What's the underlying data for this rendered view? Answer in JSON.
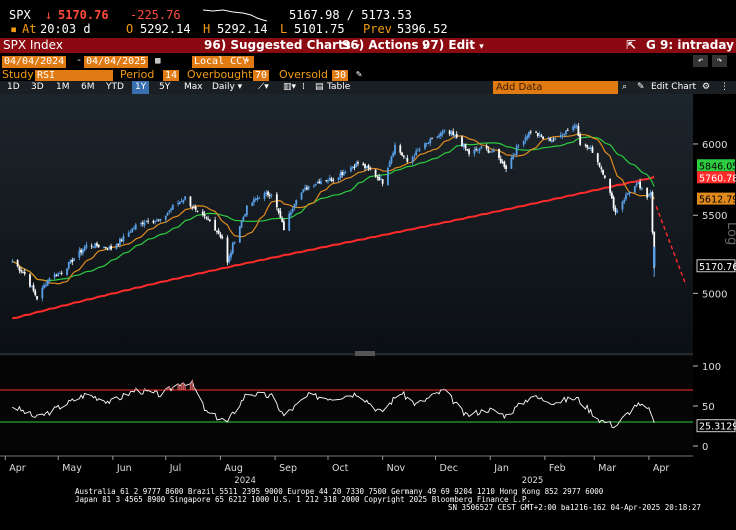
{
  "header": {
    "ticker": "SPX",
    "arrow": "↓",
    "last": "5170.76",
    "change": "-225.76",
    "bid_ask": "5167.98 / 5173.53",
    "at_label": "At",
    "time": "20:03 d",
    "open_label": "O",
    "open": "5292.14",
    "high_label": "H",
    "high": "5292.14",
    "low_label": "L",
    "low": "5101.75",
    "prev_label": "Prev",
    "prev": "5396.52"
  },
  "menubar": {
    "security": "SPX Index",
    "suggested_num": "96)",
    "suggested": "Suggested Charts",
    "actions_num": "96)",
    "actions": "Actions",
    "edit_num": "97)",
    "edit": "Edit",
    "graph": "G 9: intraday"
  },
  "controls": {
    "start_date": "04/04/2024",
    "end_date": "04/04/2025",
    "currency": "Local CCY",
    "study_label": "Study",
    "study": "RSI",
    "period_label": "Period",
    "period": "14",
    "overbought_label": "Overbought",
    "overbought": "70",
    "oversold_label": "Oversold",
    "oversold": "30"
  },
  "toolbar": {
    "ranges": [
      "1D",
      "3D",
      "1M",
      "6M",
      "YTD",
      "1Y",
      "5Y",
      "Max"
    ],
    "selected_range": "1Y",
    "interval": "Daily",
    "table": "Table",
    "add_data": "Add Data",
    "edit_chart": "Edit Chart"
  },
  "chart_data": {
    "type": "candlestick",
    "symbol": "SPX Index",
    "scale": "log",
    "scale_label": "Log",
    "ylim": [
      4700,
      6300
    ],
    "y_ticks": [
      5000,
      5500,
      6000
    ],
    "x_tick_labels": [
      "Apr",
      "May",
      "Jun",
      "Jul",
      "Aug",
      "Sep",
      "Oct",
      "Nov",
      "Dec",
      "Jan",
      "Feb",
      "Mar",
      "Apr"
    ],
    "year_labels": [
      "2024",
      "2025"
    ],
    "price_close_series": [
      [
        "2024-04-05",
        5200
      ],
      [
        "2024-04-12",
        5120
      ],
      [
        "2024-04-19",
        4970
      ],
      [
        "2024-04-26",
        5100
      ],
      [
        "2024-05-03",
        5130
      ],
      [
        "2024-05-10",
        5220
      ],
      [
        "2024-05-17",
        5300
      ],
      [
        "2024-05-24",
        5300
      ],
      [
        "2024-05-31",
        5280
      ],
      [
        "2024-06-07",
        5350
      ],
      [
        "2024-06-14",
        5430
      ],
      [
        "2024-06-21",
        5470
      ],
      [
        "2024-06-28",
        5460
      ],
      [
        "2024-07-05",
        5560
      ],
      [
        "2024-07-12",
        5620
      ],
      [
        "2024-07-19",
        5510
      ],
      [
        "2024-07-26",
        5460
      ],
      [
        "2024-08-02",
        5350
      ],
      [
        "2024-08-05",
        5186
      ],
      [
        "2024-08-09",
        5340
      ],
      [
        "2024-08-16",
        5550
      ],
      [
        "2024-08-23",
        5630
      ],
      [
        "2024-08-30",
        5650
      ],
      [
        "2024-09-06",
        5410
      ],
      [
        "2024-09-13",
        5620
      ],
      [
        "2024-09-20",
        5700
      ],
      [
        "2024-09-27",
        5740
      ],
      [
        "2024-10-04",
        5750
      ],
      [
        "2024-10-11",
        5810
      ],
      [
        "2024-10-18",
        5860
      ],
      [
        "2024-10-25",
        5810
      ],
      [
        "2024-11-01",
        5730
      ],
      [
        "2024-11-08",
        5990
      ],
      [
        "2024-11-15",
        5870
      ],
      [
        "2024-11-22",
        5960
      ],
      [
        "2024-11-29",
        6030
      ],
      [
        "2024-12-06",
        6090
      ],
      [
        "2024-12-13",
        6050
      ],
      [
        "2024-12-20",
        5930
      ],
      [
        "2024-12-27",
        5970
      ],
      [
        "2025-01-03",
        5940
      ],
      [
        "2025-01-10",
        5830
      ],
      [
        "2025-01-17",
        5990
      ],
      [
        "2025-01-24",
        6100
      ],
      [
        "2025-01-31",
        6040
      ],
      [
        "2025-02-07",
        6030
      ],
      [
        "2025-02-14",
        6110
      ],
      [
        "2025-02-19",
        6144
      ],
      [
        "2025-02-21",
        6010
      ],
      [
        "2025-02-28",
        5950
      ],
      [
        "2025-03-07",
        5770
      ],
      [
        "2025-03-13",
        5520
      ],
      [
        "2025-03-21",
        5670
      ],
      [
        "2025-03-26",
        5710
      ],
      [
        "2025-03-31",
        5610
      ],
      [
        "2025-04-02",
        5670
      ],
      [
        "2025-04-03",
        5396
      ],
      [
        "2025-04-04",
        5170
      ]
    ],
    "moving_averages": [
      {
        "name": "MA 50",
        "color": "#2ecc40",
        "last": 5846.05
      },
      {
        "name": "MA 200",
        "color": "#ff2b2b",
        "last": 5760.78
      },
      {
        "name": "MA 20",
        "color": "#e08a1e",
        "last": 5612.79
      }
    ],
    "last_price": 5170.76,
    "rsi": {
      "period": 14,
      "overbought": 70,
      "oversold": 30,
      "ylim": [
        -5,
        105
      ],
      "y_ticks": [
        0,
        50,
        100
      ],
      "last": 25.3129,
      "last_label": "25.3129",
      "series": [
        [
          "2024-04-05",
          50
        ],
        [
          "2024-04-19",
          35
        ],
        [
          "2024-05-03",
          50
        ],
        [
          "2024-05-17",
          65
        ],
        [
          "2024-05-31",
          55
        ],
        [
          "2024-06-14",
          70
        ],
        [
          "2024-06-28",
          64
        ],
        [
          "2024-07-10",
          80
        ],
        [
          "2024-07-16",
          78
        ],
        [
          "2024-07-24",
          42
        ],
        [
          "2024-08-05",
          30
        ],
        [
          "2024-08-16",
          66
        ],
        [
          "2024-08-30",
          62
        ],
        [
          "2024-09-06",
          38
        ],
        [
          "2024-09-20",
          63
        ],
        [
          "2024-10-04",
          60
        ],
        [
          "2024-10-18",
          66
        ],
        [
          "2024-10-31",
          42
        ],
        [
          "2024-11-11",
          67
        ],
        [
          "2024-11-20",
          52
        ],
        [
          "2024-12-06",
          70
        ],
        [
          "2024-12-18",
          38
        ],
        [
          "2024-12-31",
          46
        ],
        [
          "2025-01-10",
          38
        ],
        [
          "2025-01-24",
          62
        ],
        [
          "2025-02-06",
          55
        ],
        [
          "2025-02-19",
          60
        ],
        [
          "2025-03-04",
          33
        ],
        [
          "2025-03-13",
          25
        ],
        [
          "2025-03-25",
          52
        ],
        [
          "2025-04-02",
          44
        ],
        [
          "2025-04-04",
          25.3
        ]
      ]
    },
    "projection": "dashed red trend line",
    "grid": false
  },
  "footer": {
    "line1": "Australia 61 2 9777 8600 Brazil 5511 2395 9000 Europe 44 20 7330 7500 Germany 49 69 9204 1210 Hong Kong 852 2977 6000",
    "line2": "Japan 81 3 4565 8900        Singapore 65 6212 1000        U.S. 1 212 318 2000          Copyright 2025 Bloomberg Finance L.P.",
    "line3": "SN 3506527 CEST GMT+2:00 ba1216-162 04-Apr-2025 20:18:27"
  },
  "colors": {
    "up": "#5aa0e8",
    "down": "#ffffff",
    "ma50": "#2ecc40",
    "ma200": "#ff2b2b",
    "ma20": "#e08a1e",
    "brand_bar": "#8b0a12",
    "field": "#e07b13"
  }
}
